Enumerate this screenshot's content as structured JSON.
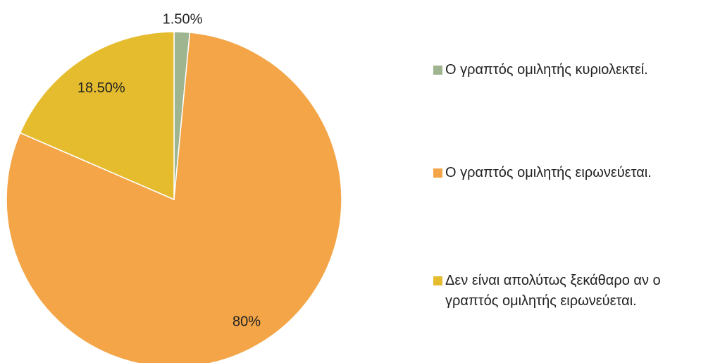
{
  "chart_data": {
    "type": "pie",
    "categories": [
      "Ο γραπτός ομιλητής κυριολεκτεί.",
      "Ο γραπτός ομιλητής ειρωνεύεται.",
      "Δεν είναι απολύτως ξεκάθαρο αν ο γραπτός ομιλητής ειρωνεύεται."
    ],
    "values": [
      1.5,
      80,
      18.5
    ],
    "value_labels": [
      "1.50%",
      "80%",
      "18.50%"
    ],
    "colors": [
      "#9fb590",
      "#f3a547",
      "#e5bc2e"
    ],
    "legend": "right"
  }
}
